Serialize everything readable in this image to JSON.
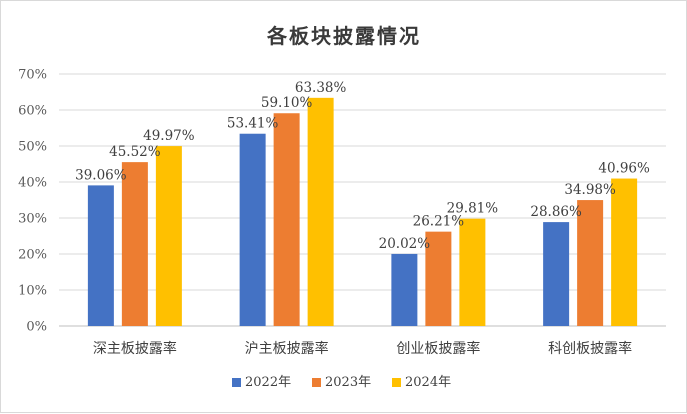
{
  "chart_data": {
    "type": "bar",
    "title": "各板块披露情况",
    "categories": [
      "深主板披露率",
      "沪主板披露率",
      "创业板披露率",
      "科创板披露率"
    ],
    "series": [
      {
        "name": "2022年",
        "color": "#4472c4",
        "values": [
          39.06,
          53.41,
          20.02,
          28.86
        ],
        "labels": [
          "39.06%",
          "53.41%",
          "20.02%",
          "28.86%"
        ]
      },
      {
        "name": "2023年",
        "color": "#ed7d31",
        "values": [
          45.52,
          59.1,
          26.21,
          34.98
        ],
        "labels": [
          "45.52%",
          "59.10%",
          "26.21%",
          "34.98%"
        ]
      },
      {
        "name": "2024年",
        "color": "#ffc000",
        "values": [
          49.97,
          63.38,
          29.81,
          40.96
        ],
        "labels": [
          "49.97%",
          "63.38%",
          "29.81%",
          "40.96%"
        ]
      }
    ],
    "ylim": [
      0,
      70
    ],
    "yticks": [
      0,
      10,
      20,
      30,
      40,
      50,
      60,
      70
    ],
    "ytick_labels": [
      "0%",
      "10%",
      "20%",
      "30%",
      "40%",
      "50%",
      "60%",
      "70%"
    ],
    "xlabel": "",
    "ylabel": "",
    "grid": true,
    "legend_position": "bottom"
  }
}
